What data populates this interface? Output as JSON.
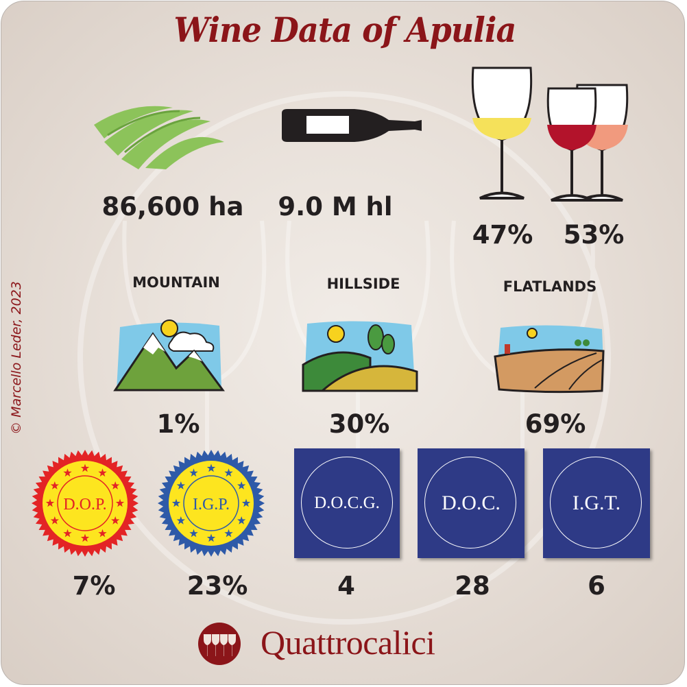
{
  "title": "Wine Data of Apulia",
  "copyright": "© Marcello Leder, 2023",
  "stats": {
    "vineyard_area": "86,600 ha",
    "production": "9.0 M hl",
    "white_share": "47%",
    "red_rose_share": "53%"
  },
  "terrain": [
    {
      "label": "MOUNTAIN",
      "value": "1%"
    },
    {
      "label": "HILLSIDE",
      "value": "30%"
    },
    {
      "label": "FLATLANDS",
      "value": "69%"
    }
  ],
  "seals": [
    {
      "label": "D.O.P.",
      "value": "7%"
    },
    {
      "label": "I.G.P.",
      "value": "23%"
    }
  ],
  "classifications": [
    {
      "label": "D.O.C.G.",
      "value": "4"
    },
    {
      "label": "D.O.C.",
      "value": "28"
    },
    {
      "label": "I.G.T.",
      "value": "6"
    }
  ],
  "brand": "Quattrocalici",
  "colors": {
    "accent": "#8b1519",
    "box_blue": "#2e3a86",
    "seal_yellow": "#fde51f",
    "vine_green": "#8cc35a"
  }
}
